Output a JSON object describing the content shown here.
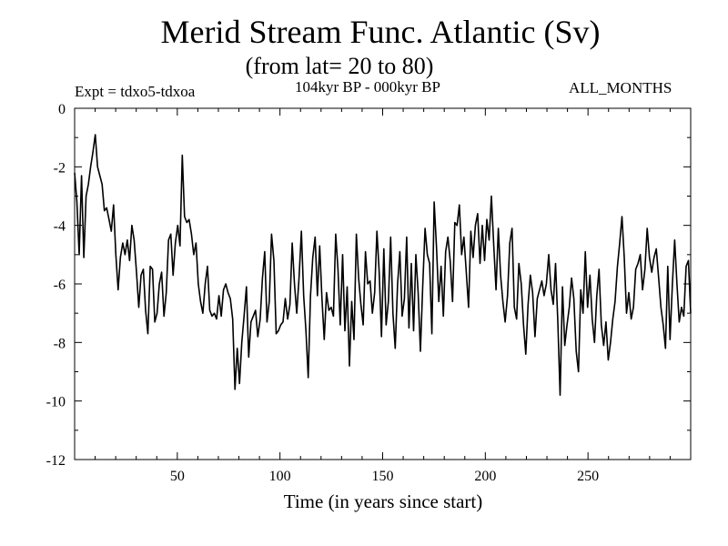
{
  "chart_data": {
    "type": "line",
    "title": "Merid Stream Func. Atlantic (Sv)",
    "subtitle": "(from lat= 20 to 80)",
    "left_label": "Expt = tdxo5-tdxoa",
    "center_label": "104kyr BP - 000kyr BP",
    "right_label": "ALL_MONTHS",
    "xlabel": "Time (in years since start)",
    "ylabel": "",
    "xlim": [
      0,
      300
    ],
    "ylim": [
      -12,
      0
    ],
    "xticks": [
      50,
      100,
      150,
      200,
      250
    ],
    "yticks": [
      0,
      -2,
      -4,
      -6,
      -8,
      -10,
      -12
    ],
    "grid": false,
    "series": [
      {
        "values": [
          -2.2,
          -3.2,
          -5.0,
          -2.3,
          -5.1,
          -3.0,
          -2.6,
          -2.0,
          -1.5,
          -0.9,
          -2.0,
          -2.3,
          -2.6,
          -3.5,
          -3.4,
          -3.8,
          -4.2,
          -3.3,
          -5.0,
          -6.2,
          -5.1,
          -4.6,
          -5.0,
          -4.5,
          -5.2,
          -4.0,
          -4.5,
          -5.6,
          -6.8,
          -5.7,
          -5.5,
          -6.9,
          -7.7,
          -5.4,
          -5.5,
          -7.3,
          -7.0,
          -6.0,
          -5.6,
          -7.1,
          -6.3,
          -4.5,
          -4.3,
          -5.7,
          -4.6,
          -4.0,
          -4.7,
          -1.6,
          -3.7,
          -3.9,
          -3.8,
          -4.3,
          -5.0,
          -4.6,
          -6.0,
          -6.6,
          -7.0,
          -6.0,
          -5.4,
          -6.9,
          -7.1,
          -7.0,
          -7.2,
          -6.4,
          -7.1,
          -6.2,
          -6.0,
          -6.3,
          -6.5,
          -7.2,
          -9.6,
          -8.2,
          -9.4,
          -8.0,
          -7.1,
          -6.1,
          -8.5,
          -7.3,
          -7.1,
          -6.9,
          -7.8,
          -7.2,
          -5.8,
          -4.9,
          -7.3,
          -6.6,
          -4.3,
          -5.2,
          -7.7,
          -7.6,
          -7.4,
          -7.3,
          -6.5,
          -7.2,
          -6.7,
          -4.6,
          -6.0,
          -7.0,
          -5.8,
          -4.2,
          -6.4,
          -7.6,
          -9.2,
          -6.4,
          -5.1,
          -4.4,
          -6.4,
          -4.7,
          -6.5,
          -7.9,
          -6.3,
          -6.9,
          -6.8,
          -7.1,
          -4.3,
          -5.5,
          -7.4,
          -5.0,
          -7.6,
          -6.1,
          -8.8,
          -6.6,
          -7.9,
          -4.3,
          -5.8,
          -6.7,
          -7.4,
          -4.9,
          -6.0,
          -5.9,
          -7.0,
          -6.3,
          -4.2,
          -5.6,
          -7.8,
          -4.8,
          -7.4,
          -6.6,
          -4.4,
          -7.0,
          -8.2,
          -6.0,
          -4.9,
          -7.1,
          -6.5,
          -4.4,
          -7.5,
          -5.3,
          -7.6,
          -5.0,
          -6.3,
          -8.3,
          -6.1,
          -4.1,
          -5.0,
          -5.3,
          -7.7,
          -3.2,
          -4.7,
          -6.6,
          -5.4,
          -7.1,
          -4.9,
          -4.4,
          -5.2,
          -6.6,
          -3.9,
          -4.0,
          -3.3,
          -5.0,
          -4.4,
          -5.6,
          -6.8,
          -4.2,
          -5.1,
          -4.0,
          -3.6,
          -5.3,
          -4.0,
          -5.2,
          -3.8,
          -4.5,
          -3.0,
          -4.7,
          -6.2,
          -4.1,
          -5.7,
          -6.6,
          -7.3,
          -6.4,
          -4.6,
          -4.1,
          -6.8,
          -7.2,
          -5.3,
          -6.0,
          -7.4,
          -8.4,
          -6.7,
          -5.7,
          -6.3,
          -7.8,
          -6.5,
          -6.2,
          -5.9,
          -6.4,
          -6.0,
          -5.0,
          -6.2,
          -6.7,
          -5.3,
          -7.3,
          -9.8,
          -6.1,
          -8.1,
          -7.4,
          -6.8,
          -5.8,
          -6.5,
          -8.3,
          -9.0,
          -6.2,
          -7.0,
          -4.9,
          -6.8,
          -5.7,
          -7.2,
          -8.0,
          -6.4,
          -5.5,
          -7.4,
          -8.1,
          -7.3,
          -8.6,
          -8.0,
          -7.2,
          -6.6,
          -5.4,
          -4.6,
          -3.7,
          -5.1,
          -7.0,
          -6.3,
          -7.2,
          -6.8,
          -5.5,
          -5.3,
          -5.0,
          -6.2,
          -5.5,
          -4.1,
          -5.1,
          -5.6,
          -5.1,
          -4.8,
          -5.8,
          -6.8,
          -7.4,
          -8.2,
          -5.4,
          -7.9,
          -6.0,
          -4.5,
          -6.0,
          -7.3,
          -6.8,
          -7.1,
          -5.4,
          -5.2,
          -7.0
        ]
      }
    ]
  }
}
